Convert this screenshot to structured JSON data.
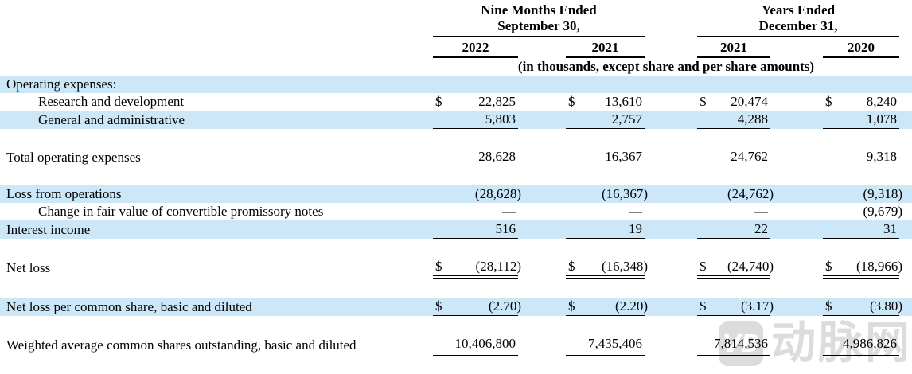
{
  "table": {
    "col_groups": [
      {
        "line1": "Nine Months Ended",
        "line2": "September 30,",
        "years": [
          "2022",
          "2021"
        ]
      },
      {
        "line1": "Years Ended",
        "line2": "December 31,",
        "years": [
          "2021",
          "2020"
        ]
      }
    ],
    "units_note": "(in thousands, except share and per share amounts)",
    "rows": [
      {
        "type": "data",
        "label": "Operating expenses:",
        "indent": 0,
        "shaded": true,
        "dollar": false,
        "values": [
          "",
          "",
          "",
          ""
        ],
        "underline": "none"
      },
      {
        "type": "data",
        "label": "Research and development",
        "indent": 1,
        "shaded": false,
        "dollar": true,
        "values": [
          "22,825",
          "13,610",
          "20,474",
          "8,240"
        ],
        "underline": "none"
      },
      {
        "type": "data",
        "label": "General and administrative",
        "indent": 1,
        "shaded": true,
        "dollar": false,
        "values": [
          "5,803",
          "2,757",
          "4,288",
          "1,078"
        ],
        "underline": "single"
      },
      {
        "type": "spacer"
      },
      {
        "type": "data",
        "label": "Total operating expenses",
        "indent": 0,
        "shaded": false,
        "dollar": false,
        "values": [
          "28,628",
          "16,367",
          "24,762",
          "9,318"
        ],
        "underline": "single"
      },
      {
        "type": "spacer"
      },
      {
        "type": "data",
        "label": "Loss from operations",
        "indent": 0,
        "shaded": true,
        "dollar": false,
        "values": [
          "(28,628)",
          "(16,367)",
          "(24,762)",
          "(9,318)"
        ],
        "underline": "none"
      },
      {
        "type": "data",
        "label": "Change in fair value of convertible promissory notes",
        "indent": 1,
        "shaded": false,
        "dollar": false,
        "values": [
          "—",
          "—",
          "—",
          "(9,679)"
        ],
        "underline": "none"
      },
      {
        "type": "data",
        "label": "Interest income",
        "indent": 0,
        "shaded": true,
        "dollar": false,
        "values": [
          "516",
          "19",
          "22",
          "31"
        ],
        "underline": "single"
      },
      {
        "type": "spacer"
      },
      {
        "type": "data",
        "label": "Net loss",
        "indent": 0,
        "shaded": false,
        "dollar": true,
        "values": [
          "(28,112)",
          "(16,348)",
          "(24,740)",
          "(18,966)"
        ],
        "underline": "double"
      },
      {
        "type": "spacer"
      },
      {
        "type": "data",
        "label": "Net loss per common share, basic and diluted",
        "indent": 0,
        "shaded": true,
        "dollar": true,
        "values": [
          "(2.70)",
          "(2.20)",
          "(3.17)",
          "(3.80)"
        ],
        "underline": "single"
      },
      {
        "type": "spacer"
      },
      {
        "type": "data",
        "label": "Weighted average common shares outstanding, basic and diluted",
        "indent": 0,
        "hanging": true,
        "shaded": false,
        "dollar": false,
        "values": [
          "10,406,800",
          "7,435,406",
          "7,814,536",
          "4,986,826"
        ],
        "underline": "double"
      }
    ]
  },
  "watermark": {
    "logo_text": "VB",
    "text": "动脉网"
  },
  "colors": {
    "row_highlight": "#cce8f8",
    "watermark_gray": "#dcdcdc",
    "text": "#000000",
    "rule": "#000000"
  }
}
